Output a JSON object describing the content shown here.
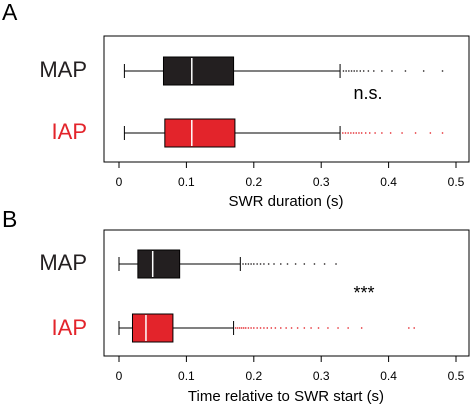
{
  "chart_data": [
    {
      "type": "boxplot",
      "panel_label": "A",
      "xlabel": "SWR duration (s)",
      "xlim": [
        0,
        0.5
      ],
      "x_ticks": [
        0,
        0.1,
        0.2,
        0.3,
        0.4,
        0.5
      ],
      "x_tick_labels": [
        "0",
        "0.1",
        "0.2",
        "0.3",
        "0.4",
        "0.5"
      ],
      "orientation": "horizontal",
      "annotation": "n.s.",
      "series": [
        {
          "name": "MAP",
          "color": "#231f20",
          "whisker_low": 0.008,
          "q1": 0.066,
          "median": 0.108,
          "q3": 0.17,
          "whisker_high": 0.328,
          "outliers": [
            0.333,
            0.337,
            0.341,
            0.345,
            0.349,
            0.353,
            0.358,
            0.363,
            0.37,
            0.378,
            0.39,
            0.405,
            0.425,
            0.452,
            0.48
          ]
        },
        {
          "name": "IAP",
          "color": "#e3242b",
          "whisker_low": 0.008,
          "q1": 0.068,
          "median": 0.108,
          "q3": 0.172,
          "whisker_high": 0.328,
          "outliers": [
            0.332,
            0.336,
            0.34,
            0.344,
            0.348,
            0.352,
            0.356,
            0.36,
            0.366,
            0.372,
            0.38,
            0.39,
            0.403,
            0.42,
            0.44,
            0.462,
            0.48
          ]
        }
      ]
    },
    {
      "type": "boxplot",
      "panel_label": "B",
      "xlabel": "Time relative to SWR start (s)",
      "xlim": [
        0,
        0.5
      ],
      "x_ticks": [
        0,
        0.1,
        0.2,
        0.3,
        0.4,
        0.5
      ],
      "x_tick_labels": [
        "0",
        "0.1",
        "0.2",
        "0.3",
        "0.4",
        "0.5"
      ],
      "orientation": "horizontal",
      "annotation": "***",
      "series": [
        {
          "name": "MAP",
          "color": "#231f20",
          "whisker_low": 0.0,
          "q1": 0.028,
          "median": 0.05,
          "q3": 0.09,
          "whisker_high": 0.18,
          "outliers": [
            0.184,
            0.188,
            0.192,
            0.196,
            0.2,
            0.205,
            0.21,
            0.215,
            0.222,
            0.23,
            0.24,
            0.25,
            0.262,
            0.275,
            0.29,
            0.305,
            0.322
          ]
        },
        {
          "name": "IAP",
          "color": "#e3242b",
          "whisker_low": 0.0,
          "q1": 0.02,
          "median": 0.04,
          "q3": 0.08,
          "whisker_high": 0.17,
          "outliers": [
            0.173,
            0.176,
            0.179,
            0.182,
            0.185,
            0.188,
            0.192,
            0.196,
            0.2,
            0.205,
            0.21,
            0.215,
            0.22,
            0.226,
            0.232,
            0.24,
            0.248,
            0.256,
            0.265,
            0.275,
            0.285,
            0.296,
            0.31,
            0.325,
            0.34,
            0.36,
            0.43,
            0.438
          ]
        }
      ]
    }
  ]
}
